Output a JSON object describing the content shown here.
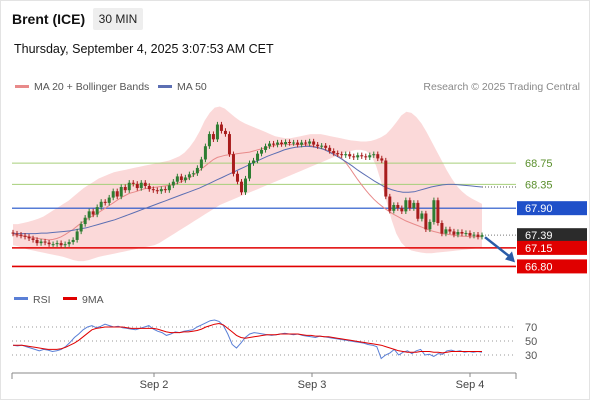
{
  "header": {
    "instrument": "Brent (ICE)",
    "timeframe": "30 MIN",
    "datetime": "Thursday, September 4, 2025 3:07:53 AM CET"
  },
  "legend": {
    "ma20_label": "MA 20 + Bollinger Bands",
    "ma50_label": "MA 50",
    "copyright": "Research © 2025 Trading Central",
    "rsi_label": "RSI",
    "rsi_ma_label": "9MA"
  },
  "colors": {
    "candle": "#a81d1d",
    "candle_up": "#2e7d32",
    "bollinger_fill": "#f9cccc",
    "ma20": "#e88a8a",
    "ma50": "#5c6fb3",
    "resistance": "#a6cf7a",
    "pivot": "#1f50c9",
    "support": "#e00000",
    "last_price": "#2b2b2b",
    "rsi": "#5a7fd6",
    "rsi_ma": "#e00000",
    "arrow": "#2a5ca8"
  },
  "chart_data": [
    {
      "type": "candlestick",
      "title": "Brent (ICE) 30 MIN",
      "x_ticks": [
        "Sep 2",
        "Sep 3",
        "Sep 4"
      ],
      "ylim": [
        66.6,
        70.0
      ],
      "price_levels": [
        {
          "value": 68.75,
          "label": "68.75",
          "kind": "resistance"
        },
        {
          "value": 68.35,
          "label": "68.35",
          "kind": "resistance"
        },
        {
          "value": 67.9,
          "label": "67.90",
          "kind": "pivot"
        },
        {
          "value": 67.39,
          "label": "67.39",
          "kind": "last"
        },
        {
          "value": 67.15,
          "label": "67.15",
          "kind": "support"
        },
        {
          "value": 66.8,
          "label": "66.80",
          "kind": "support"
        }
      ],
      "close": [
        67.42,
        67.4,
        67.38,
        67.36,
        67.33,
        67.3,
        67.24,
        67.27,
        67.25,
        67.22,
        67.22,
        67.24,
        67.2,
        67.22,
        67.26,
        67.3,
        67.46,
        67.6,
        67.72,
        67.84,
        67.78,
        67.92,
        68.02,
        68.0,
        68.1,
        68.22,
        68.12,
        68.3,
        68.24,
        68.38,
        68.36,
        68.28,
        68.38,
        68.32,
        68.26,
        68.24,
        68.22,
        68.26,
        68.24,
        68.33,
        68.4,
        68.5,
        68.43,
        68.48,
        68.54,
        68.56,
        68.66,
        68.82,
        69.07,
        69.3,
        69.2,
        69.48,
        69.36,
        69.3,
        68.92,
        68.55,
        68.4,
        68.2,
        68.46,
        68.75,
        68.8,
        68.93,
        69.0,
        69.07,
        69.12,
        69.1,
        69.14,
        69.11,
        69.15,
        69.13,
        69.14,
        69.1,
        69.14,
        69.12,
        69.16,
        69.1,
        69.07,
        69.08,
        69.04,
        68.98,
        68.94,
        68.92,
        68.9,
        68.92,
        68.88,
        68.86,
        68.9,
        68.88,
        68.86,
        68.9,
        68.92,
        68.84,
        68.8,
        68.12,
        67.85,
        67.96,
        67.9,
        67.84,
        68.05,
        67.9,
        68.0,
        67.7,
        67.8,
        67.5,
        67.64,
        68.05,
        67.62,
        67.42,
        67.5,
        67.46,
        67.4,
        67.45,
        67.42,
        67.43,
        67.38,
        67.4,
        67.36,
        67.39
      ],
      "ma20": [
        67.4,
        67.39,
        67.38,
        67.37,
        67.36,
        67.35,
        67.33,
        67.32,
        67.31,
        67.3,
        67.31,
        67.33,
        67.36,
        67.4,
        67.45,
        67.5,
        67.56,
        67.62,
        67.67,
        67.72,
        67.76,
        67.8,
        67.85,
        67.9,
        67.95,
        68.0,
        68.05,
        68.1,
        68.14,
        68.18,
        68.2,
        68.22,
        68.25,
        68.27,
        68.28,
        68.29,
        68.3,
        68.31,
        68.32,
        68.33,
        68.35,
        68.37,
        68.4,
        68.43,
        68.47,
        68.52,
        68.58,
        68.64,
        68.7,
        68.76,
        68.82,
        68.86,
        68.88,
        68.9,
        68.91,
        68.92,
        68.93,
        68.94,
        68.95,
        68.96,
        68.98,
        69.0,
        69.02,
        69.04,
        69.06,
        69.08,
        69.1,
        69.11,
        69.11,
        69.1,
        69.1,
        69.1,
        69.1,
        69.1,
        69.09,
        69.07,
        69.05,
        69.03,
        69.0,
        68.97,
        68.94,
        68.9,
        68.84,
        68.76,
        68.66,
        68.55,
        68.44,
        68.34,
        68.24,
        68.15,
        68.07,
        68.0,
        67.94,
        67.88,
        67.83,
        67.78,
        67.74,
        67.7,
        67.66,
        67.63,
        67.6,
        67.57,
        67.54,
        67.51,
        67.48,
        67.46,
        67.44,
        67.42,
        67.41,
        67.4,
        67.39,
        67.38,
        67.37,
        67.37,
        67.36,
        67.36,
        67.36,
        67.36
      ],
      "ma50": [
        67.42,
        67.42,
        67.42,
        67.42,
        67.42,
        67.43,
        67.43,
        67.44,
        67.45,
        67.46,
        67.47,
        67.49,
        67.51,
        67.53,
        67.56,
        67.59,
        67.62,
        67.65,
        67.68,
        67.72,
        67.76,
        67.8,
        67.84,
        67.88,
        67.92,
        67.96,
        68.0,
        68.04,
        68.08,
        68.12,
        68.16,
        68.2,
        68.24,
        68.28,
        68.33,
        68.38,
        68.43,
        68.48,
        68.53,
        68.58,
        68.63,
        68.68,
        68.73,
        68.78,
        68.83,
        68.88,
        68.92,
        68.96,
        69.0,
        69.03,
        69.05,
        69.06,
        69.07,
        69.06,
        69.04,
        69.01,
        68.96,
        68.9,
        68.84,
        68.77,
        68.7,
        68.62,
        68.55,
        68.48,
        68.41,
        68.35,
        68.29,
        68.25,
        68.22,
        68.2,
        68.2,
        68.21,
        68.24,
        68.27,
        68.3,
        68.32,
        68.34,
        68.35,
        68.35,
        68.34,
        68.33,
        68.32,
        68.31,
        68.3
      ],
      "bb_upper": [
        67.6,
        67.6,
        67.62,
        67.64,
        67.67,
        67.7,
        67.74,
        67.8,
        67.86,
        67.92,
        67.98,
        68.04,
        68.12,
        68.2,
        68.28,
        68.34,
        68.4,
        68.46,
        68.5,
        68.54,
        68.58,
        68.6,
        68.62,
        68.64,
        68.66,
        68.68,
        68.7,
        68.72,
        68.74,
        68.76,
        68.78,
        68.8,
        68.84,
        68.88,
        68.95,
        69.05,
        69.18,
        69.35,
        69.55,
        69.7,
        69.8,
        69.82,
        69.78,
        69.7,
        69.62,
        69.55,
        69.5,
        69.46,
        69.42,
        69.38,
        69.34,
        69.3,
        69.26,
        69.24,
        69.22,
        69.22,
        69.24,
        69.26,
        69.28,
        69.3,
        69.3,
        69.3,
        69.28,
        69.26,
        69.24,
        69.22,
        69.2,
        69.18,
        69.17,
        69.16,
        69.16,
        69.17,
        69.2,
        69.24,
        69.3,
        69.4,
        69.52,
        69.65,
        69.72,
        69.7,
        69.62,
        69.5,
        69.34,
        69.16,
        68.98,
        68.8,
        68.62,
        68.46,
        68.32,
        68.22,
        68.14,
        68.08,
        68.03,
        67.98
      ],
      "bb_lower": [
        67.2,
        67.18,
        67.15,
        67.12,
        67.1,
        67.08,
        67.06,
        67.04,
        67.02,
        67.0,
        66.98,
        66.95,
        66.92,
        66.9,
        66.9,
        66.92,
        66.95,
        66.98,
        67.0,
        67.02,
        67.04,
        67.06,
        67.08,
        67.1,
        67.12,
        67.14,
        67.16,
        67.18,
        67.2,
        67.24,
        67.3,
        67.36,
        67.42,
        67.48,
        67.54,
        67.6,
        67.66,
        67.72,
        67.78,
        67.84,
        67.9,
        67.96,
        68.0,
        68.04,
        68.08,
        68.12,
        68.16,
        68.2,
        68.24,
        68.28,
        68.32,
        68.36,
        68.4,
        68.44,
        68.48,
        68.52,
        68.56,
        68.6,
        68.64,
        68.68,
        68.72,
        68.76,
        68.8,
        68.84,
        68.88,
        68.92,
        68.96,
        68.98,
        69.0,
        69.0,
        68.98,
        68.9,
        68.7,
        68.4,
        68.05,
        67.7,
        67.42,
        67.25,
        67.15,
        67.1,
        67.08,
        67.06,
        67.05,
        67.05,
        67.06,
        67.07,
        67.08,
        67.09,
        67.1,
        67.11,
        67.12,
        67.13,
        67.14,
        67.15
      ]
    },
    {
      "type": "line",
      "title": "RSI",
      "y_ticks": [
        70,
        50,
        30
      ],
      "ylim": [
        10,
        90
      ],
      "series": [
        {
          "name": "RSI",
          "values": [
            44,
            43,
            44,
            42,
            40,
            38,
            36,
            38,
            37,
            35,
            36,
            38,
            42,
            48,
            55,
            60,
            66,
            70,
            72,
            69,
            71,
            74,
            72,
            70,
            71,
            69,
            68,
            67,
            66,
            68,
            70,
            72,
            67,
            64,
            62,
            58,
            60,
            63,
            62,
            64,
            65,
            66,
            70,
            73,
            76,
            79,
            80,
            78,
            72,
            60,
            45,
            40,
            47,
            55,
            60,
            62,
            61,
            60,
            59,
            58,
            59,
            60,
            61,
            60,
            59,
            60,
            58,
            57,
            56,
            55,
            57,
            56,
            55,
            54,
            53,
            52,
            51,
            50,
            49,
            48,
            47,
            45,
            44,
            42,
            25,
            30,
            33,
            38,
            30,
            34,
            36,
            32,
            36,
            38,
            30,
            31,
            28,
            32,
            31,
            36,
            37,
            35,
            36,
            34,
            35,
            34,
            35,
            34
          ]
        },
        {
          "name": "9MA",
          "values": [
            44,
            44,
            44,
            43,
            42,
            41,
            40,
            39,
            38,
            38,
            38,
            39,
            41,
            44,
            47,
            51,
            56,
            61,
            66,
            68,
            69,
            70,
            70,
            70,
            70,
            70,
            69,
            68,
            68,
            68,
            68,
            68,
            68,
            67,
            65,
            63,
            62,
            62,
            62,
            63,
            63,
            64,
            65,
            67,
            70,
            72,
            74,
            75,
            73,
            68,
            63,
            58,
            55,
            54,
            55,
            56,
            57,
            58,
            59,
            59,
            59,
            60,
            60,
            60,
            60,
            60,
            59,
            58,
            58,
            57,
            57,
            56,
            56,
            55,
            54,
            53,
            52,
            51,
            50,
            49,
            48,
            47,
            46,
            45,
            44,
            42,
            40,
            38,
            36,
            35,
            34,
            34,
            34,
            35,
            35,
            35,
            34,
            34,
            33,
            34,
            35,
            35,
            35,
            35,
            35,
            35,
            35,
            35
          ]
        }
      ]
    }
  ]
}
